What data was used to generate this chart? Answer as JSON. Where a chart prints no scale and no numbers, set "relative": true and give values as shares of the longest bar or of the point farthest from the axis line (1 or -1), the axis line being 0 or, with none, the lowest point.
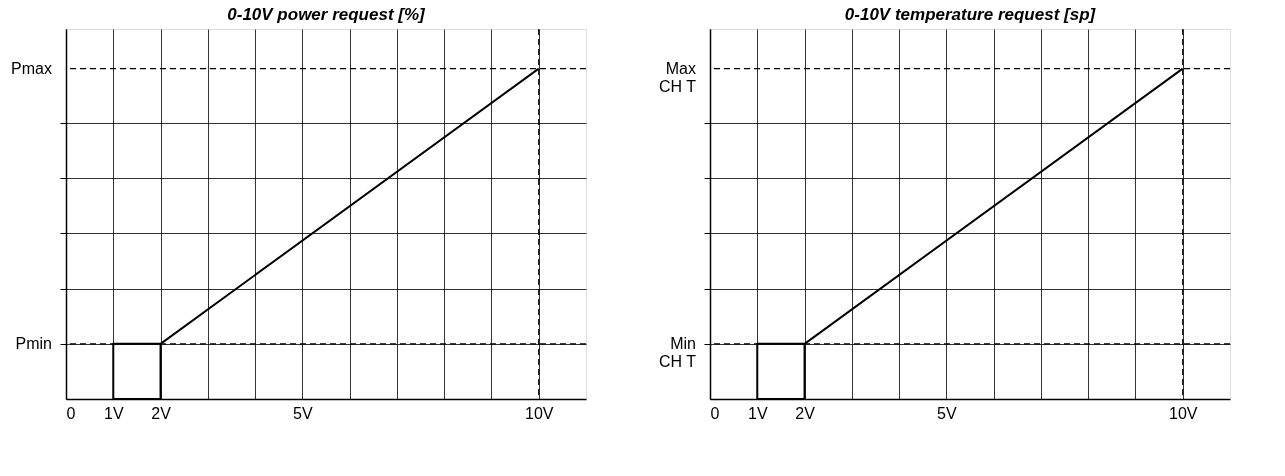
{
  "chart_data": [
    {
      "type": "line",
      "title": "0-10V power request [%]",
      "relative": true,
      "xlim": [
        0,
        11
      ],
      "xticks": [
        0,
        {
          "value": 1,
          "label": "1V"
        },
        {
          "value": 2,
          "label": "2V"
        },
        {
          "value": 3,
          "label": null
        },
        {
          "value": 4,
          "label": null
        },
        {
          "value": 5,
          "label": "5V"
        },
        {
          "value": 6,
          "label": null
        },
        {
          "value": 7,
          "label": null
        },
        {
          "value": 8,
          "label": null
        },
        {
          "value": 9,
          "label": null
        },
        {
          "value": 10,
          "label": "10V"
        }
      ],
      "ref_lines": [
        {
          "axis": "y",
          "value": 0.167,
          "label": "Pmin",
          "line_style": "dashed",
          "color": "#000000"
        },
        {
          "axis": "y",
          "value": 1,
          "label": "Pmax",
          "line_style": "dashed",
          "color": "#000000"
        },
        {
          "axis": "x",
          "value": 10,
          "line_style": "dashed",
          "color": "#000000"
        }
      ],
      "grid": true,
      "series": [
        {
          "color": "#000000",
          "line_style": "solid",
          "x": [
            1,
            1,
            2,
            2,
            1,
            2,
            10
          ],
          "values": [
            0.167,
            0,
            0,
            0.167,
            0.167,
            0.167,
            1
          ]
        }
      ]
    },
    {
      "type": "line",
      "title": "0-10V temperature request [sp]",
      "relative": true,
      "xlim": [
        0,
        11
      ],
      "xticks": [
        0,
        {
          "value": 1,
          "label": "1V"
        },
        {
          "value": 2,
          "label": "2V"
        },
        {
          "value": 3,
          "label": null
        },
        {
          "value": 4,
          "label": null
        },
        {
          "value": 5,
          "label": "5V"
        },
        {
          "value": 6,
          "label": null
        },
        {
          "value": 7,
          "label": null
        },
        {
          "value": 8,
          "label": null
        },
        {
          "value": 9,
          "label": null
        },
        {
          "value": 10,
          "label": "10V"
        }
      ],
      "ref_lines": [
        {
          "axis": "y",
          "value": 0.167,
          "label": "Min\nCH T",
          "line_style": "dashed",
          "color": "#000000"
        },
        {
          "axis": "y",
          "value": 1,
          "label": "Max\nCH T",
          "line_style": "dashed",
          "color": "#000000"
        },
        {
          "axis": "x",
          "value": 10,
          "line_style": "dashed",
          "color": "#000000"
        }
      ],
      "grid": true,
      "series": [
        {
          "color": "#000000",
          "line_style": "solid",
          "x": [
            1,
            1,
            2,
            2,
            1,
            2,
            10
          ],
          "values": [
            0.167,
            0,
            0,
            0.167,
            0.167,
            0.167,
            1
          ]
        }
      ]
    }
  ]
}
